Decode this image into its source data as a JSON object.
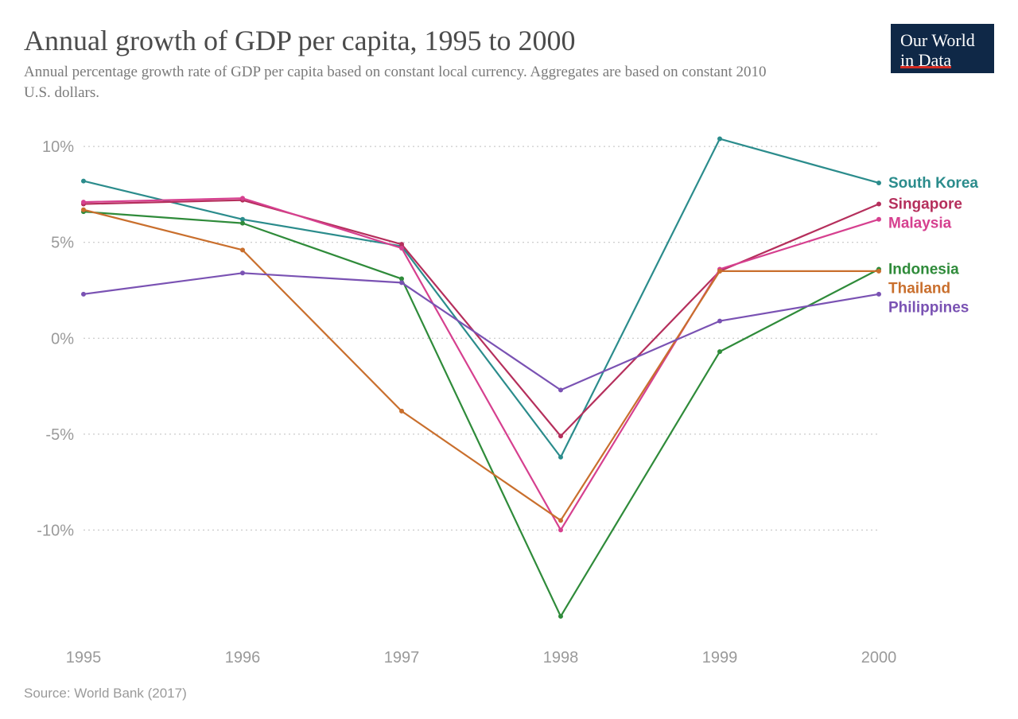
{
  "title": "Annual growth of GDP per capita, 1995 to 2000",
  "subtitle": "Annual percentage growth rate of GDP per capita based on constant local currency. Aggregates are based on constant 2010 U.S. dollars.",
  "logo": {
    "line1": "Our World",
    "line2": "in Data"
  },
  "source": "Source: World Bank (2017)",
  "chart": {
    "type": "line",
    "x_values": [
      1995,
      1996,
      1997,
      1998,
      1999,
      2000
    ],
    "x_labels": [
      "1995",
      "1996",
      "1997",
      "1998",
      "1999",
      "2000"
    ],
    "y_ticks": [
      10,
      5,
      0,
      -5,
      -10
    ],
    "y_labels": [
      "10%",
      "5%",
      "0%",
      "-5%",
      "-10%"
    ],
    "y_min": -15.5,
    "y_max": 11.5,
    "background_color": "#ffffff",
    "grid_color": "#bfbfbf",
    "grid_width": 1,
    "line_width": 2.2,
    "marker_radius": 3.0,
    "label_fontsize": 19,
    "axis_fontsize": 20,
    "series": [
      {
        "name": "South Korea",
        "color": "#2b8c8c",
        "values": [
          8.2,
          6.2,
          4.8,
          -6.2,
          10.4,
          8.1
        ]
      },
      {
        "name": "Singapore",
        "color": "#b52f5c",
        "values": [
          7.0,
          7.2,
          4.9,
          -5.1,
          3.5,
          7.0
        ]
      },
      {
        "name": "Malaysia",
        "color": "#d6408f",
        "values": [
          7.1,
          7.3,
          4.7,
          -10.0,
          3.6,
          6.2
        ]
      },
      {
        "name": "Indonesia",
        "color": "#2f8b3a",
        "values": [
          6.6,
          6.0,
          3.1,
          -14.5,
          -0.7,
          3.6
        ]
      },
      {
        "name": "Thailand",
        "color": "#c96f2d",
        "values": [
          6.7,
          4.6,
          -3.8,
          -9.5,
          3.5,
          3.5
        ]
      },
      {
        "name": "Philippines",
        "color": "#7a52b3",
        "values": [
          2.3,
          3.4,
          2.9,
          -2.7,
          0.9,
          2.3
        ]
      }
    ]
  }
}
